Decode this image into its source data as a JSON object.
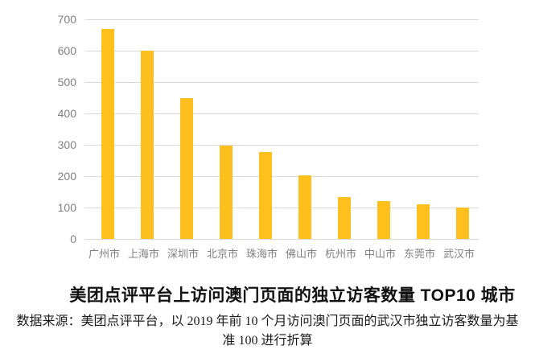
{
  "title": "美团点评平台上访问澳门页面的独立访客数量 TOP10 城市",
  "source_note": {
    "line1": "数据来源：美团点评平台，以 2019 年前 10 个月访问澳门页面的武汉市独立访客数量为基",
    "line2": "准 100 进行折算"
  },
  "colors": {
    "bar": "#FFC01E",
    "gridline": "#D9D9D9",
    "axis_text": "#808080",
    "title_text": "#111111",
    "background": "#FFFFFF"
  },
  "chart_data": {
    "type": "bar",
    "title": "美团点评平台上访问澳门页面的独立访客数量 TOP10 城市",
    "categories": [
      "广州市",
      "上海市",
      "深圳市",
      "北京市",
      "珠海市",
      "佛山市",
      "杭州市",
      "中山市",
      "东莞市",
      "武汉市"
    ],
    "values": [
      670,
      600,
      448,
      298,
      277,
      203,
      133,
      120,
      110,
      100
    ],
    "xlabel": "",
    "ylabel": "",
    "ylim": [
      0,
      700
    ],
    "yticks": [
      0,
      100,
      200,
      300,
      400,
      500,
      600,
      700
    ],
    "grid": true,
    "legend_position": "none",
    "bar_color": "#FFC01E",
    "note": "values indexed to 武汉市 = 100"
  }
}
